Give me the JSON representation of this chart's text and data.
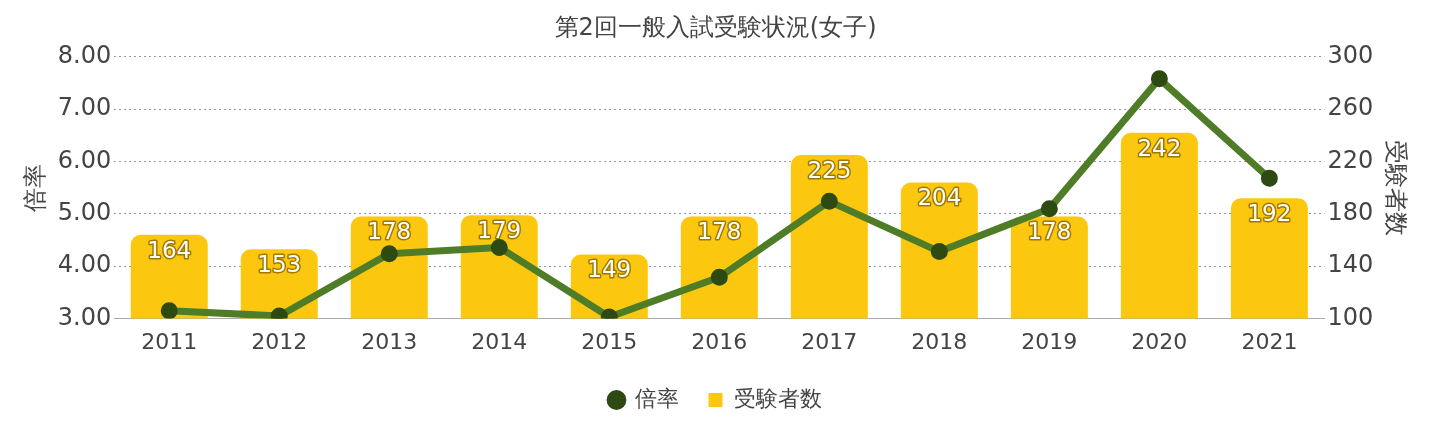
{
  "chart_data": {
    "type": "bar",
    "title": "第2回一般入試受験状況(女子)",
    "categories": [
      "2011",
      "2012",
      "2013",
      "2014",
      "2015",
      "2016",
      "2017",
      "2018",
      "2019",
      "2020",
      "2021"
    ],
    "series": [
      {
        "name": "倍率",
        "type": "line",
        "color": "#4e7c27",
        "values": [
          3.15,
          3.05,
          4.24,
          4.36,
          3.03,
          3.79,
          5.24,
          4.28,
          5.1,
          7.58,
          5.68
        ]
      },
      {
        "name": "受験者数",
        "axis": "y2",
        "color": "#fcc80f",
        "values": [
          164,
          153,
          178,
          179,
          149,
          178,
          225,
          204,
          178,
          242,
          192
        ],
        "value_labels": [
          "164",
          "153",
          "178",
          "179",
          "149",
          "178",
          "225",
          "204",
          "178",
          "242",
          "192"
        ]
      }
    ],
    "ylabel": "倍率",
    "y2label": "受験者数",
    "ylim": [
      3,
      8
    ],
    "yticks": [
      {
        "value": 3,
        "label": "3.00"
      },
      {
        "value": 4,
        "label": "4.00"
      },
      {
        "value": 5,
        "label": "5.00"
      },
      {
        "value": 6,
        "label": "6.00"
      },
      {
        "value": 7,
        "label": "7.00"
      },
      {
        "value": 8,
        "label": "8.00"
      }
    ],
    "y2lim": [
      100,
      300
    ],
    "y2ticks": [
      100,
      140,
      180,
      220,
      260,
      300
    ],
    "grid": "y",
    "legend": "bottom",
    "marker": "circle",
    "line_style": "solid"
  }
}
